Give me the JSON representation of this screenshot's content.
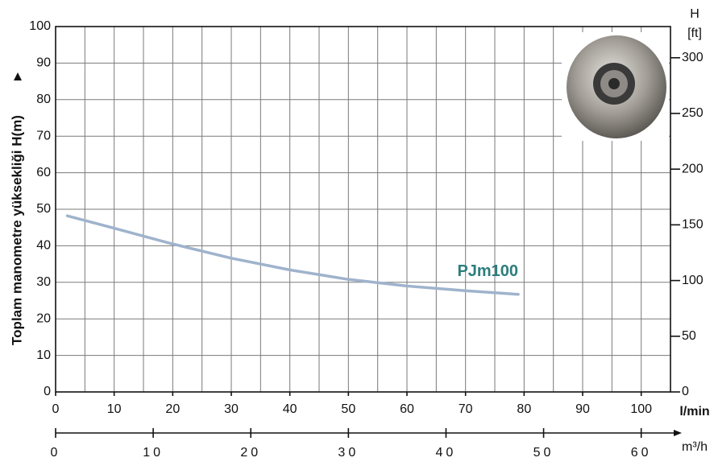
{
  "chart_data": {
    "type": "line",
    "y_label": "Toplam manometre yüksekliği  H(m)",
    "y2_label": "H",
    "y2_unit": "[ft]",
    "x_label": "l/min",
    "x2_label": "m³/h",
    "x": [
      2,
      10,
      20,
      30,
      40,
      50,
      60,
      70,
      79
    ],
    "series": [
      {
        "name": "PJm100",
        "color": "#9fb3cc",
        "values": [
          48.2,
          44.8,
          40.5,
          36.6,
          33.4,
          30.8,
          29.0,
          27.7,
          26.7
        ]
      }
    ],
    "label_color": "#2e7d7d",
    "xlim": [
      0,
      105
    ],
    "xticks": [
      0,
      10,
      20,
      30,
      40,
      50,
      60,
      70,
      80,
      90,
      100
    ],
    "ylim": [
      0,
      100
    ],
    "yticks": [
      0,
      10,
      20,
      30,
      40,
      50,
      60,
      70,
      80,
      90,
      100
    ],
    "y2lim": [
      0,
      328
    ],
    "y2ticks": [
      0,
      50,
      100,
      150,
      200,
      250,
      300
    ],
    "x2lim": [
      0,
      63
    ],
    "x2ticks": [
      0,
      10,
      20,
      30,
      40,
      50,
      60
    ],
    "grid": true,
    "x_grid_step": 5
  }
}
